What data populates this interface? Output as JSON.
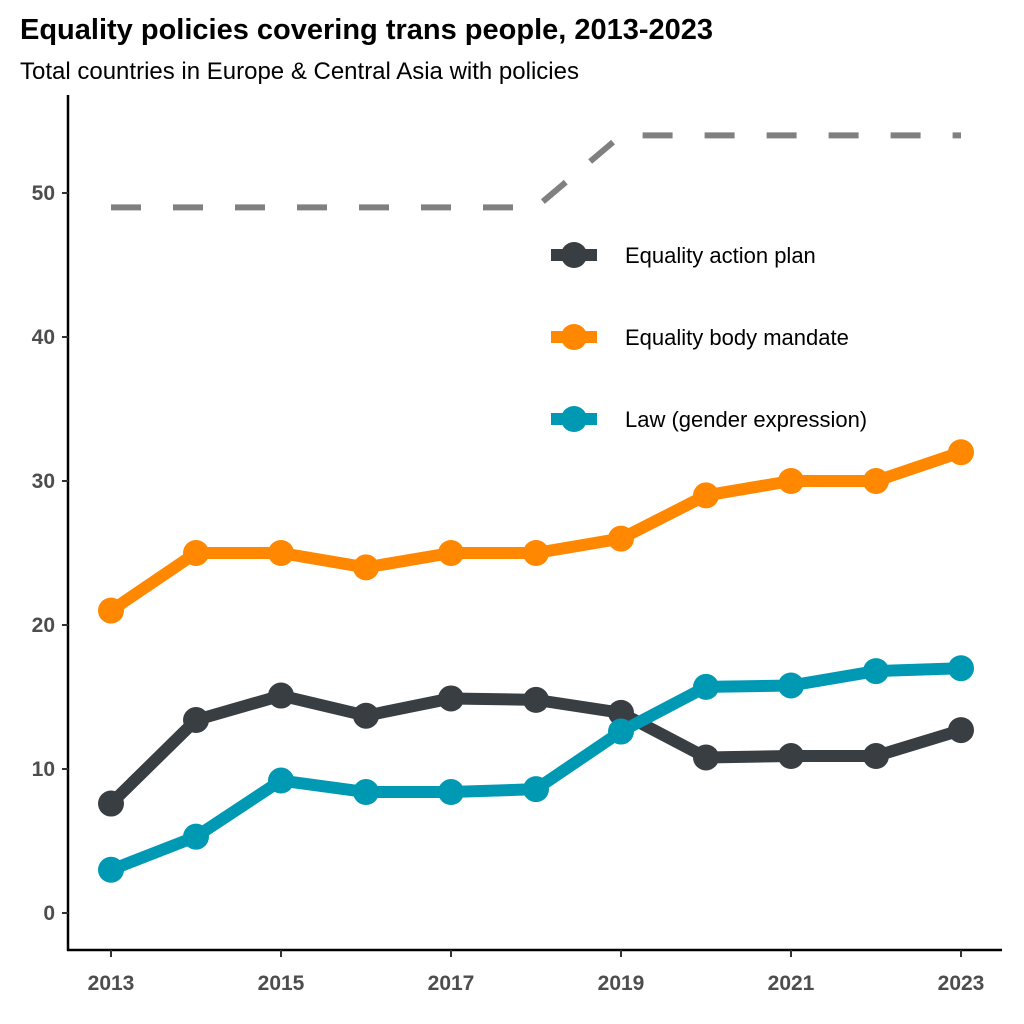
{
  "chart_data": {
    "type": "line",
    "title": "Equality policies covering trans people, 2013-2023",
    "subtitle": "Total countries in Europe & Central Asia with policies",
    "x": [
      2013,
      2014,
      2015,
      2016,
      2017,
      2018,
      2019,
      2020,
      2021,
      2022,
      2023
    ],
    "xticks": [
      2013,
      2015,
      2017,
      2019,
      2021,
      2023
    ],
    "yticks": [
      0,
      10,
      20,
      30,
      40,
      50
    ],
    "xlim": [
      2012.5,
      2023.5
    ],
    "ylim": [
      -2.5,
      56.8
    ],
    "grid": false,
    "legend_position": "top-right",
    "series": [
      {
        "name": "Equality action plan",
        "color": "#383e42",
        "style": "solid-markers",
        "values": [
          7.6,
          13.4,
          15.1,
          13.7,
          14.9,
          14.8,
          13.9,
          10.8,
          10.9,
          10.9,
          12.7
        ]
      },
      {
        "name": "Equality body mandate",
        "color": "#ff8800",
        "style": "solid-markers",
        "values": [
          21,
          25,
          25,
          24,
          25,
          25,
          26,
          29,
          30,
          30,
          32
        ]
      },
      {
        "name": "Law (gender expression)",
        "color": "#0099b4",
        "style": "solid-markers",
        "values": [
          3.0,
          5.3,
          9.2,
          8.4,
          8.4,
          8.6,
          12.6,
          15.7,
          15.8,
          16.8,
          17.0
        ]
      },
      {
        "color": "#808080",
        "style": "dashed",
        "values": [
          49,
          49,
          49,
          49,
          49,
          49,
          54,
          54,
          54,
          54,
          54
        ]
      }
    ]
  }
}
